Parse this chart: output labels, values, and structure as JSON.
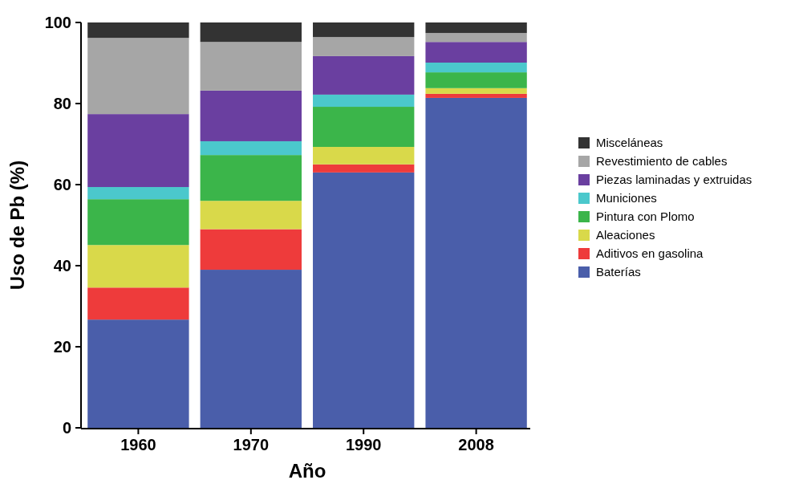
{
  "chart_data": {
    "type": "bar",
    "stacked": true,
    "xlabel": "Año",
    "ylabel": "Uso de Pb (%)",
    "categories": [
      "1960",
      "1970",
      "1990",
      "2008"
    ],
    "ylim": [
      0,
      100
    ],
    "yticks": [
      0,
      20,
      40,
      60,
      80,
      100
    ],
    "grid": false,
    "legend": "right",
    "series": [
      {
        "name": "Baterías",
        "color": "#4a5eaa",
        "values": [
          26.7,
          39,
          63,
          81.4
        ]
      },
      {
        "name": "Aditivos en gasolina",
        "color": "#ee3b3b",
        "values": [
          7.9,
          10,
          2,
          1
        ]
      },
      {
        "name": "Aleaciones",
        "color": "#d9d94a",
        "values": [
          10.5,
          7,
          4.3,
          1.4
        ]
      },
      {
        "name": "Pintura con Plomo",
        "color": "#3bb54a",
        "values": [
          11.3,
          11.3,
          9.9,
          3.9
        ]
      },
      {
        "name": "Municiones",
        "color": "#4bc8cc",
        "values": [
          3,
          3.4,
          3,
          2.4
        ]
      },
      {
        "name": "Piezas laminadas y extruidas",
        "color": "#6a3fa0",
        "values": [
          18,
          12.5,
          9.5,
          5.1
        ]
      },
      {
        "name": "Revestimiento de cables",
        "color": "#a6a6a6",
        "values": [
          18.8,
          12,
          4.7,
          2.2
        ]
      },
      {
        "name": "Misceláneas",
        "color": "#333333",
        "values": [
          3.8,
          4.8,
          3.6,
          2.6
        ]
      }
    ]
  }
}
